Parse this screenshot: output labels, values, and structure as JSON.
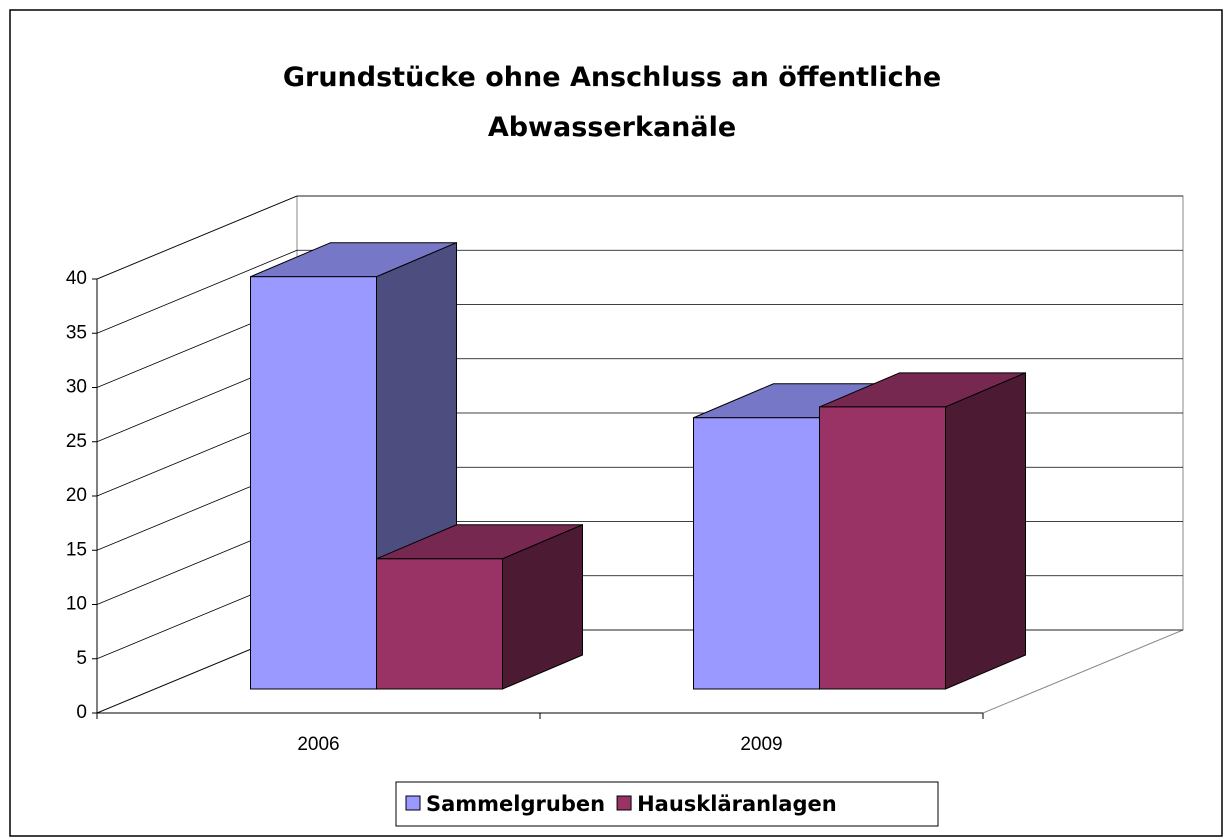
{
  "chart_data": {
    "type": "bar3d",
    "title": "Grundstücke ohne Anschluss an öffentliche Abwasserkanäle",
    "categories": [
      "2006",
      "2009"
    ],
    "series": [
      {
        "name": "Sammelgruben",
        "color": "#9999ff",
        "values": [
          38,
          25
        ]
      },
      {
        "name": "Hauskläranlagen",
        "color": "#993366",
        "values": [
          12,
          26
        ]
      }
    ],
    "ylim": [
      0,
      40
    ],
    "yticks": [
      0,
      5,
      10,
      15,
      20,
      25,
      30,
      35,
      40
    ],
    "grid": true,
    "legend": "bottom"
  }
}
